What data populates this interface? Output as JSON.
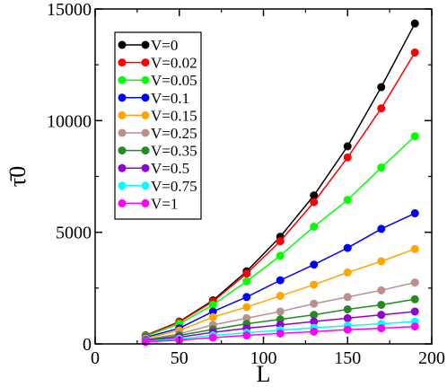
{
  "chart_data": {
    "type": "line",
    "xlabel": "L",
    "ylabel": "τ̄0",
    "xlim": [
      0,
      200
    ],
    "ylim": [
      0,
      15000
    ],
    "x_ticks": [
      0,
      50,
      100,
      150,
      200
    ],
    "y_ticks": [
      0,
      5000,
      10000,
      15000
    ],
    "x_tick_labels": [
      "0",
      "50",
      "100",
      "150",
      "200"
    ],
    "y_tick_labels": [
      "0",
      "5000",
      "10000",
      "15000"
    ],
    "legend_position": "top-left",
    "grid": false,
    "x": [
      30,
      50,
      70,
      90,
      110,
      130,
      150,
      170,
      190
    ],
    "series": [
      {
        "name": "V=0",
        "color": "#000000",
        "values": [
          380,
          1000,
          1950,
          3250,
          4800,
          6650,
          8850,
          11500,
          14350
        ]
      },
      {
        "name": "V=0.02",
        "color": "#ff0000",
        "values": [
          370,
          980,
          1900,
          3150,
          4600,
          6350,
          8350,
          10550,
          13050
        ]
      },
      {
        "name": "V=0.05",
        "color": "#00ff00",
        "values": [
          340,
          900,
          1750,
          2800,
          3950,
          5250,
          6450,
          7900,
          9300
        ]
      },
      {
        "name": "V=0.1",
        "color": "#0000ff",
        "values": [
          290,
          700,
          1450,
          2100,
          2850,
          3550,
          4300,
          5150,
          5850
        ]
      },
      {
        "name": "V=0.15",
        "color": "#ffa500",
        "values": [
          250,
          600,
          1200,
          1650,
          2150,
          2650,
          3200,
          3700,
          4250
        ]
      },
      {
        "name": "V=0.25",
        "color": "#bc8f8f",
        "values": [
          200,
          450,
          850,
          1150,
          1450,
          1800,
          2100,
          2400,
          2750
        ]
      },
      {
        "name": "V=0.35",
        "color": "#228b22",
        "values": [
          170,
          380,
          650,
          900,
          1100,
          1300,
          1550,
          1750,
          2000
        ]
      },
      {
        "name": "V=0.5",
        "color": "#9400d3",
        "values": [
          140,
          300,
          520,
          700,
          850,
          1000,
          1150,
          1300,
          1450
        ]
      },
      {
        "name": "V=0.75",
        "color": "#00ffff",
        "values": [
          110,
          230,
          380,
          500,
          620,
          720,
          820,
          900,
          1000
        ]
      },
      {
        "name": "V=1",
        "color": "#ff00ff",
        "values": [
          90,
          170,
          280,
          380,
          470,
          550,
          640,
          700,
          780
        ]
      }
    ]
  }
}
